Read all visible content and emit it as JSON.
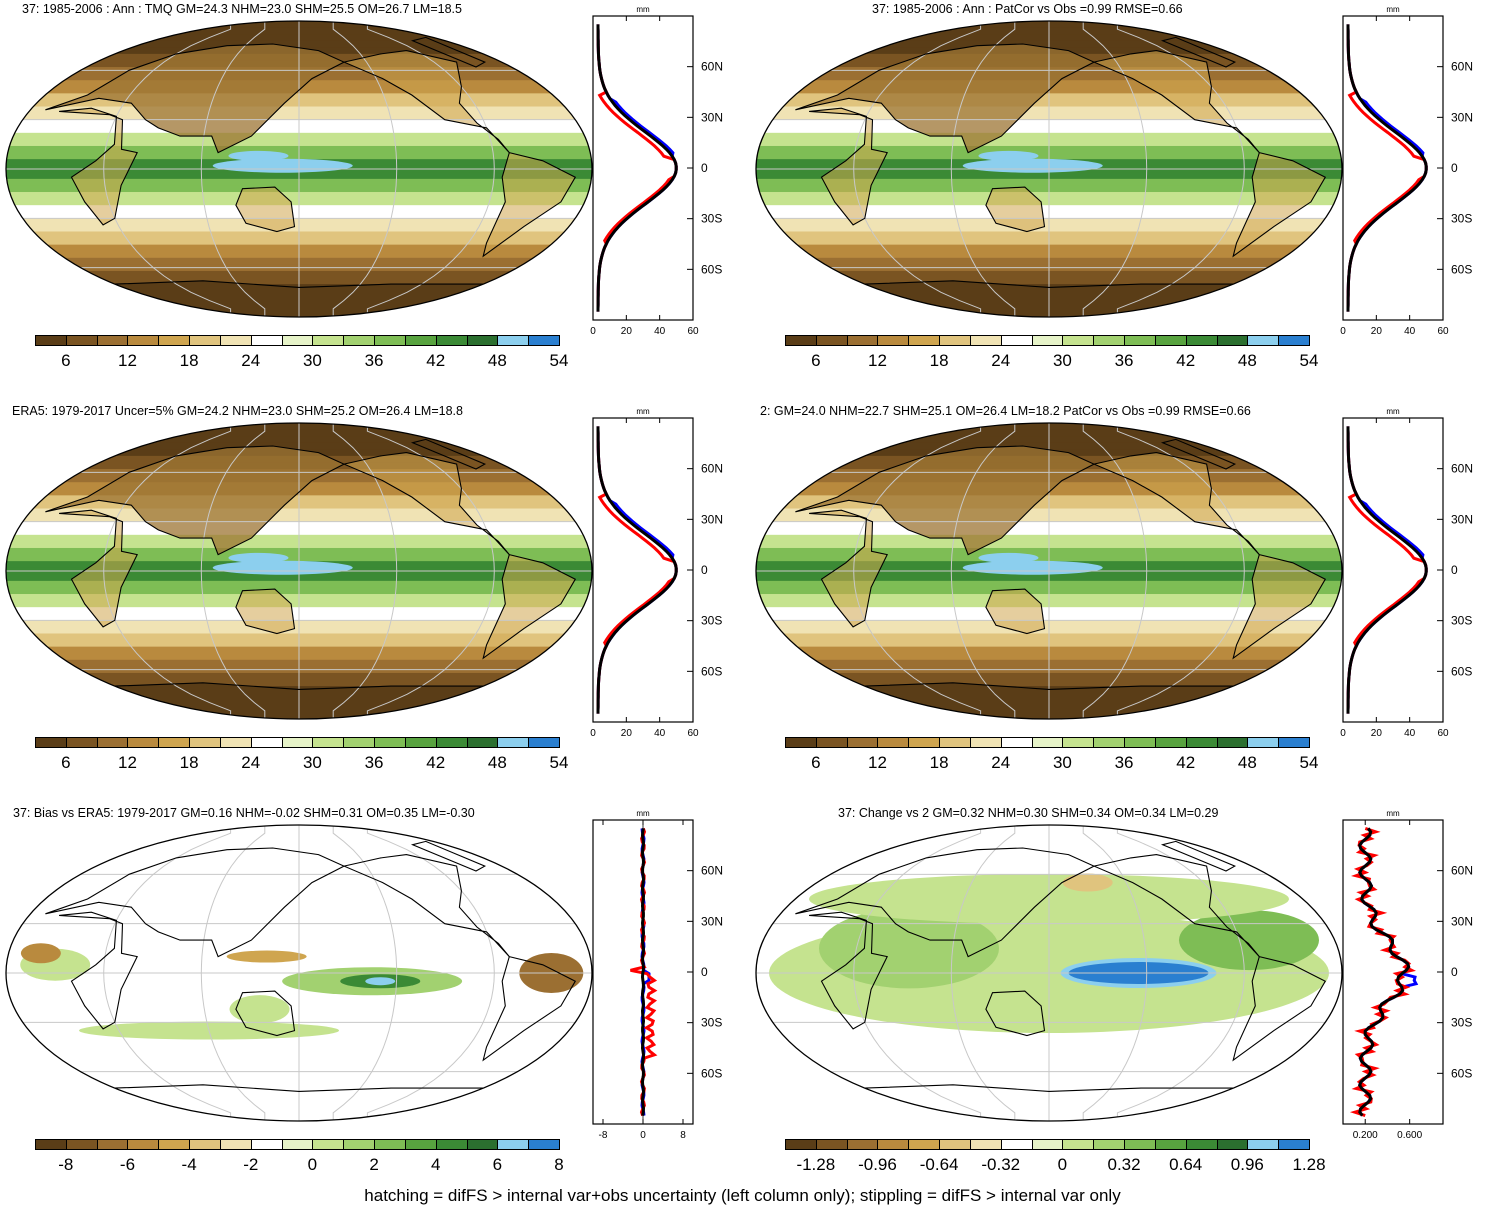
{
  "footer": "hatching = difFS > internal var+obs uncertainty (left column only); stippling = difFS > internal var only",
  "colors": {
    "palette": [
      "#5a3d17",
      "#7a5422",
      "#9b6f32",
      "#b98a3e",
      "#cfa54f",
      "#e0c47e",
      "#f0e3b4",
      "#ffffff",
      "#e6f3c8",
      "#c5e38f",
      "#a2d170",
      "#7ebd55",
      "#58a33f",
      "#3b8a35",
      "#2b6f2f",
      "#8ccfee",
      "#2a7fd0"
    ],
    "profile_model": "#ff0000",
    "profile_obs": "#0000ff",
    "profile_other": "#000000",
    "grid": "#c8c8c8",
    "coast": "#000000"
  },
  "panels": [
    {
      "id": "model-clim",
      "title": "37: 1985-2006 : Ann : TMQ GM=24.3 NHM=23.0 SHM=25.5 OM=26.7 LM=18.5",
      "field": "clim",
      "colorbar_labels": [
        "6",
        "12",
        "18",
        "24",
        "30",
        "36",
        "42",
        "48",
        "54"
      ],
      "profile_unit": "mm",
      "profile_xticks": [
        "0",
        "20",
        "40",
        "60"
      ],
      "profile_lat_labels": [
        "60N",
        "30N",
        "0",
        "30S",
        "60S"
      ],
      "profile_type": "clim"
    },
    {
      "id": "model-vs-obs",
      "title": "37: 1985-2006 : Ann : PatCor vs Obs =0.99 RMSE=0.66",
      "field": "clim",
      "colorbar_labels": [
        "6",
        "12",
        "18",
        "24",
        "30",
        "36",
        "42",
        "48",
        "54"
      ],
      "profile_unit": "mm",
      "profile_xticks": [
        "0",
        "20",
        "40",
        "60"
      ],
      "profile_lat_labels": [
        "60N",
        "30N",
        "0",
        "30S",
        "60S"
      ],
      "profile_type": "clim"
    },
    {
      "id": "era5-clim",
      "title": "ERA5: 1979-2017 Uncer=5% GM=24.2 NHM=23.0 SHM=25.2 OM=26.4 LM=18.8",
      "field": "clim",
      "colorbar_labels": [
        "6",
        "12",
        "18",
        "24",
        "30",
        "36",
        "42",
        "48",
        "54"
      ],
      "profile_unit": "mm",
      "profile_xticks": [
        "0",
        "20",
        "40",
        "60"
      ],
      "profile_lat_labels": [
        "60N",
        "30N",
        "0",
        "30S",
        "60S"
      ],
      "profile_type": "clim"
    },
    {
      "id": "run2-clim",
      "title": "2: GM=24.0 NHM=22.7 SHM=25.1 OM=26.4 LM=18.2 PatCor vs Obs =0.99 RMSE=0.66",
      "field": "clim",
      "colorbar_labels": [
        "6",
        "12",
        "18",
        "24",
        "30",
        "36",
        "42",
        "48",
        "54"
      ],
      "profile_unit": "mm",
      "profile_xticks": [
        "0",
        "20",
        "40",
        "60"
      ],
      "profile_lat_labels": [
        "60N",
        "30N",
        "0",
        "30S",
        "60S"
      ],
      "profile_type": "clim"
    },
    {
      "id": "bias-vs-era5",
      "title": "37: Bias vs ERA5: 1979-2017 GM=0.16 NHM=-0.02 SHM=0.31 OM=0.35 LM=-0.30",
      "field": "bias",
      "colorbar_labels": [
        "-8",
        "-6",
        "-4",
        "-2",
        "0",
        "2",
        "4",
        "6",
        "8"
      ],
      "profile_unit": "mm",
      "profile_xticks": [
        "-8",
        "0",
        "8"
      ],
      "profile_lat_labels": [
        "60N",
        "30N",
        "0",
        "30S",
        "60S"
      ],
      "profile_type": "bias"
    },
    {
      "id": "change-vs-2",
      "title": "37: Change vs 2 GM=0.32 NHM=0.30 SHM=0.34 OM=0.34 LM=0.29",
      "field": "change",
      "colorbar_labels": [
        "-1.28",
        "-0.96",
        "-0.64",
        "-0.32",
        "0",
        "0.32",
        "0.64",
        "0.96",
        "1.28"
      ],
      "profile_unit": "mm",
      "profile_xticks": [
        "0.200",
        "0.600"
      ],
      "profile_lat_labels": [
        "60N",
        "30N",
        "0",
        "30S",
        "60S"
      ],
      "profile_type": "change"
    }
  ]
}
